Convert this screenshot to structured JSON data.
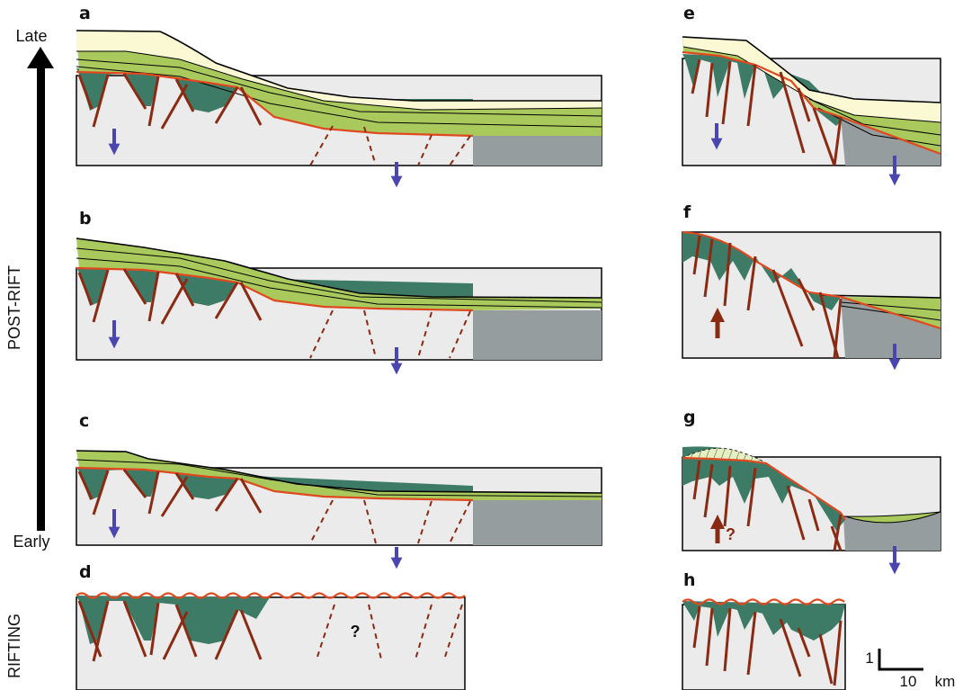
{
  "time_axis": {
    "top_label": "Late",
    "bottom_label": "Early",
    "phase_label": "POST-RIFT"
  },
  "rifting_label": "RIFTING",
  "panel_labels": {
    "a": "a",
    "b": "b",
    "c": "c",
    "d": "d",
    "e": "e",
    "f": "f",
    "g": "g",
    "h": "h"
  },
  "annotations": {
    "panel_d_question": "?",
    "panel_g_question": "?"
  },
  "scale_bar": {
    "vertical": "1",
    "horizontal_value": "10",
    "horizontal_unit": "km"
  },
  "colors": {
    "basement": "#ebebeb",
    "oceanic_crust": "#969d9e",
    "synrift_fill": "#3e7b66",
    "postrift_green": "#a9c95d",
    "postrift_cream": "#fbf9d4",
    "fault": "#8b2a12",
    "unconformity": "#e0491f",
    "subsidence_arrow": "#4a46b0",
    "uplift_arrow": "#8b2a12"
  }
}
